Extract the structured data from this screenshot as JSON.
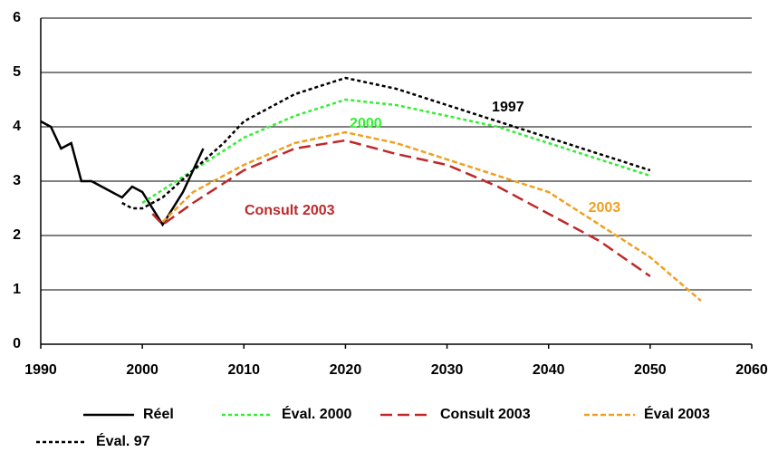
{
  "chart_data": {
    "type": "line",
    "xlim": [
      1990,
      2060
    ],
    "xticks": [
      1990,
      2000,
      2010,
      2020,
      2030,
      2040,
      2050,
      2060
    ],
    "ylim": [
      0,
      6
    ],
    "yticks": [
      0,
      1,
      2,
      3,
      4,
      5,
      6
    ],
    "grid": true,
    "legend": "bottom",
    "series": [
      {
        "name": "Réel",
        "color": "#000000",
        "dash": "solid",
        "x": [
          1990,
          1991,
          1992,
          1993,
          1994,
          1995,
          1996,
          1997,
          1998,
          1999,
          2000,
          2001,
          2002,
          2003,
          2004,
          2005,
          2006
        ],
        "values": [
          4.1,
          4.0,
          3.6,
          3.7,
          3.0,
          3.0,
          2.9,
          2.8,
          2.7,
          2.9,
          2.8,
          2.5,
          2.2,
          2.5,
          2.8,
          3.2,
          3.6
        ]
      },
      {
        "name": "Éval. 2000",
        "color": "#33ee33",
        "dash": "dotted",
        "x": [
          2000,
          2005,
          2010,
          2015,
          2020,
          2025,
          2030,
          2035,
          2040,
          2045,
          2050
        ],
        "values": [
          2.6,
          3.2,
          3.8,
          4.2,
          4.5,
          4.4,
          4.2,
          4.0,
          3.7,
          3.4,
          3.1
        ]
      },
      {
        "name": "Consult 2003",
        "color": "#c0282a",
        "dash": "long-dash",
        "x": [
          2001,
          2002,
          2005,
          2010,
          2015,
          2020,
          2025,
          2030,
          2035,
          2040,
          2045,
          2050
        ],
        "values": [
          2.4,
          2.2,
          2.6,
          3.2,
          3.6,
          3.75,
          3.5,
          3.3,
          2.9,
          2.4,
          1.9,
          1.25
        ]
      },
      {
        "name": "Éval 2003",
        "color": "#f0a020",
        "dash": "dashed",
        "x": [
          2002,
          2005,
          2010,
          2015,
          2020,
          2025,
          2030,
          2035,
          2040,
          2045,
          2050,
          2055
        ],
        "values": [
          2.25,
          2.8,
          3.3,
          3.7,
          3.9,
          3.7,
          3.4,
          3.1,
          2.8,
          2.2,
          1.6,
          0.8
        ]
      },
      {
        "name": "Éval. 97",
        "color": "#000000",
        "dash": "dotted",
        "x": [
          1998,
          1999,
          2000,
          2002,
          2005,
          2008,
          2010,
          2015,
          2020,
          2025,
          2030,
          2035,
          2040,
          2045,
          2050
        ],
        "values": [
          2.6,
          2.5,
          2.5,
          2.7,
          3.2,
          3.7,
          4.1,
          4.6,
          4.9,
          4.7,
          4.4,
          4.1,
          3.8,
          3.5,
          3.2
        ]
      }
    ],
    "annotations": [
      {
        "text": "1997",
        "color": "#000000"
      },
      {
        "text": "2000",
        "color": "#33ee33"
      },
      {
        "text": "Consult 2003",
        "color": "#c0282a"
      },
      {
        "text": "2003",
        "color": "#f0a020"
      }
    ]
  }
}
